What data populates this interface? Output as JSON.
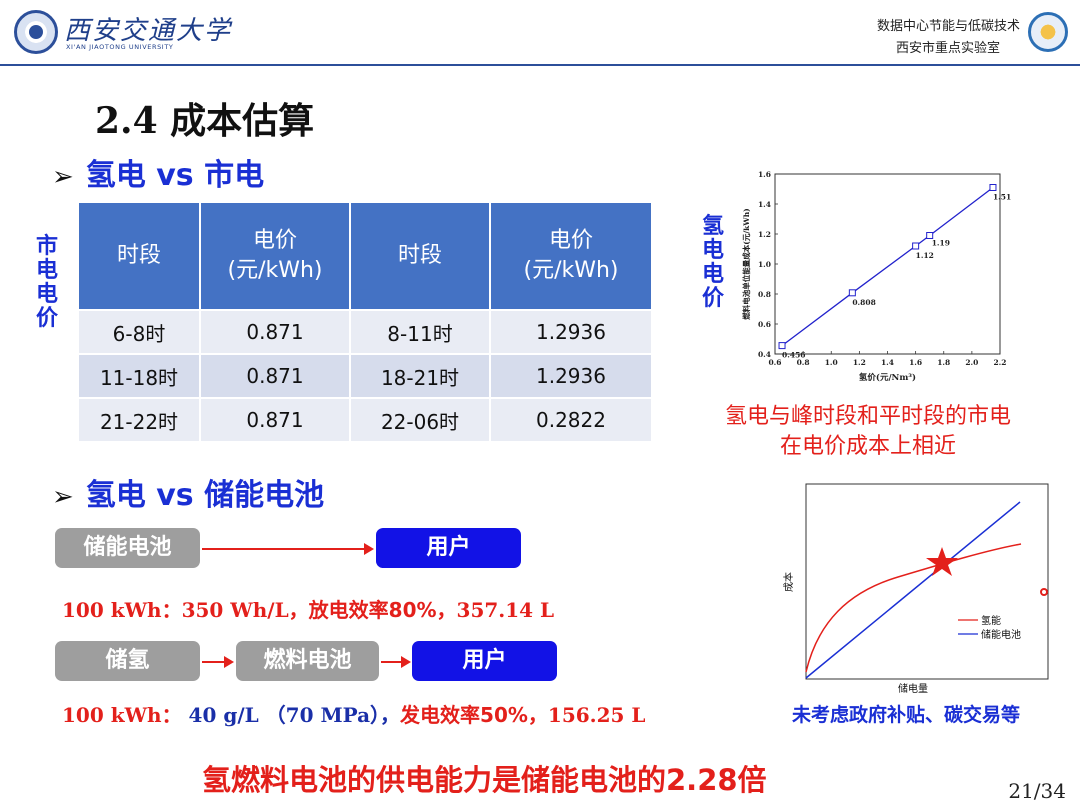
{
  "header": {
    "university_cn": "西安交通大学",
    "university_en": "XI'AN JIAOTONG UNIVERSITY",
    "lab_line1": "数据中心节能与低碳技术",
    "lab_line2": "西安市重点实验室"
  },
  "title": "2.4  成本估算",
  "section1": {
    "arrow": "➢",
    "label": "氢电 vs 市电"
  },
  "table": {
    "side_label": "市电电价",
    "headers": [
      "时段",
      "电价\n(元/kWh)",
      "时段",
      "电价\n(元/kWh)"
    ],
    "header_price_line1": "电价",
    "header_price_line2": "(元/kWh)",
    "header_period": "时段",
    "rows": [
      [
        "6-8时",
        "0.871",
        "8-11时",
        "1.2936"
      ],
      [
        "11-18时",
        "0.871",
        "18-21时",
        "1.2936"
      ],
      [
        "21-22时",
        "0.871",
        "22-06时",
        "0.2822"
      ]
    ]
  },
  "chart_data": [
    {
      "type": "line",
      "side_label": "氢电电价",
      "xlabel": "氢价(元/Nm³)",
      "ylabel": "燃料电池单位能量成本(元/kWh)",
      "xlim": [
        0.6,
        2.2
      ],
      "ylim": [
        0.4,
        1.6
      ],
      "xticks": [
        "0.6",
        "0.8",
        "1.0",
        "1.2",
        "1.4",
        "1.6",
        "1.8",
        "2.0",
        "2.2"
      ],
      "yticks": [
        "0.4",
        "0.6",
        "0.8",
        "1.0",
        "1.2",
        "1.4",
        "1.6"
      ],
      "x": [
        0.65,
        1.15,
        1.6,
        1.7,
        2.15
      ],
      "y": [
        0.456,
        0.808,
        1.12,
        1.19,
        1.51
      ],
      "point_labels": [
        "0.456",
        "0.808",
        "1.12",
        "1.19",
        "1.51"
      ],
      "color": "#2222cc"
    },
    {
      "type": "line",
      "xlabel": "储电量",
      "ylabel": "成本",
      "legend": [
        "氢能",
        "储能电池"
      ],
      "legend_colors": [
        "#e3201b",
        "#1a2fd4"
      ],
      "marker": "star"
    }
  ],
  "note_red_line1": "氢电与峰时段和平时段的市电",
  "note_red_line2": "在电价成本上相近",
  "section2": {
    "arrow": "➢",
    "label": "氢电 vs 储能电池"
  },
  "flow1": {
    "source": "储能电池",
    "target": "用户"
  },
  "line1": {
    "prefix": "100 kWh：350 Wh/L，",
    "middle": "放电效率80%，",
    "result": "357.14 L"
  },
  "flow2": {
    "step1": "储氢",
    "step2": "燃料电池",
    "target": "用户"
  },
  "line2": {
    "prefix": "100 kWh：",
    "density": " 40 g/L （70 MPa），",
    "middle": "发电效率50%，",
    "result": "156.25 L"
  },
  "note_blue": "未考虑政府补贴、碳交易等",
  "conclusion": "氢燃料电池的供电能力是储能电池的2.28倍",
  "page": "21/34"
}
